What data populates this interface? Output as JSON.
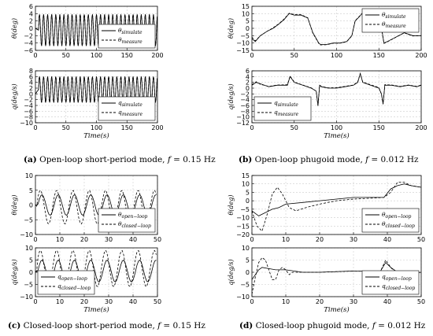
{
  "captions": {
    "a": {
      "tag": "(a)",
      "text": " Open-loop short-period mode, ",
      "f": "f",
      "val": " = 0.15 Hz"
    },
    "b": {
      "tag": "(b)",
      "text": " Open-loop phugoid mode, ",
      "f": "f",
      "val": " = 0.012 Hz"
    },
    "c": {
      "tag": "(c)",
      "text": " Closed-loop short-period mode, ",
      "f": "f",
      "val": " = 0.15 Hz"
    },
    "d": {
      "tag": "(d)",
      "text": " Closed-loop phugoid mode, ",
      "f": "f",
      "val": " = 0.012 Hz"
    }
  },
  "styles": {
    "solid_color": "#000000",
    "dashed_color": "#000000",
    "grid_color": "#cccccc"
  },
  "chart_data": [
    {
      "id": "a_top",
      "type": "line",
      "panel": "a",
      "ylabel": "θ(deg)",
      "xlabel": "",
      "xlim": [
        0,
        200
      ],
      "ylim": [
        -6,
        6
      ],
      "xticks": [
        0,
        50,
        100,
        150,
        200
      ],
      "yticks": [
        -6,
        -4,
        -2,
        0,
        2,
        4,
        6
      ],
      "grid": true,
      "legend": "bottom-right",
      "series": [
        {
          "name": "θsimulate",
          "style": "solid",
          "kind": "sine",
          "period": 6.67,
          "amp": [
            -4.8,
            3.8
          ],
          "start": 5
        },
        {
          "name": "θmeasure",
          "style": "dashed",
          "kind": "sine",
          "period": 6.67,
          "amp": [
            -4.8,
            3.8
          ],
          "start": 5
        }
      ]
    },
    {
      "id": "a_bot",
      "type": "line",
      "panel": "a",
      "ylabel": "q(deg/s)",
      "xlabel": "Time(s)",
      "xlim": [
        0,
        200
      ],
      "ylim": [
        -10,
        8
      ],
      "xticks": [
        0,
        50,
        100,
        150,
        200
      ],
      "yticks": [
        -10,
        -8,
        -6,
        -4,
        -2,
        0,
        2,
        4,
        6,
        8
      ],
      "grid": true,
      "legend": "bottom-right",
      "series": [
        {
          "name": "qsimulate",
          "style": "solid",
          "kind": "sine",
          "period": 6.67,
          "amp": [
            -3,
            6
          ],
          "start": 5
        },
        {
          "name": "qmeasure",
          "style": "dashed",
          "kind": "sine",
          "period": 6.67,
          "amp": [
            -3,
            6
          ],
          "start": 5
        }
      ]
    },
    {
      "id": "b_top",
      "type": "line",
      "panel": "b",
      "ylabel": "θ(deg)",
      "xlabel": "",
      "xlim": [
        0,
        200
      ],
      "ylim": [
        -15,
        15
      ],
      "xticks": [
        0,
        50,
        100,
        150,
        200
      ],
      "yticks": [
        -15,
        -10,
        -5,
        0,
        5,
        10,
        15
      ],
      "grid": true,
      "legend": "top-right",
      "series": [
        {
          "name": "θsimulate",
          "style": "solid",
          "x": [
            0,
            4,
            10,
            18,
            25,
            32,
            38,
            44,
            50,
            58,
            66,
            72,
            77,
            79,
            81,
            88,
            96,
            104,
            112,
            118,
            122,
            127,
            130,
            133,
            141,
            149,
            154,
            156,
            160,
            170,
            180,
            190,
            200
          ],
          "y": [
            -7,
            -9,
            -5,
            -2,
            0,
            3,
            6,
            10,
            9,
            9,
            7,
            -3,
            -8,
            -10,
            -11,
            -11,
            -10,
            -10,
            -9,
            -5,
            5,
            8,
            10,
            11,
            10,
            9,
            -3,
            -10,
            -9,
            -6,
            -3,
            -5,
            -5
          ]
        },
        {
          "name": "θmeasure",
          "style": "dashed",
          "x": [
            0,
            4,
            10,
            18,
            25,
            32,
            38,
            44,
            50,
            58,
            66,
            72,
            77,
            79,
            81,
            88,
            96,
            104,
            112,
            118,
            122,
            127,
            130,
            133,
            141,
            149,
            154,
            156,
            160,
            170,
            180,
            190,
            200
          ],
          "y": [
            -6,
            -8.5,
            -5,
            -2,
            0.3,
            3.2,
            6.3,
            10.3,
            9.4,
            9.3,
            7.2,
            -3.4,
            -8.3,
            -10.3,
            -11.3,
            -11.2,
            -10.2,
            -10.1,
            -9.1,
            -5.2,
            5.2,
            8.2,
            10.2,
            11.3,
            10.2,
            9.2,
            -3.3,
            -10.3,
            -9.2,
            -6.1,
            -3.1,
            -5.2,
            -5.1
          ]
        }
      ]
    },
    {
      "id": "b_bot",
      "type": "line",
      "panel": "b",
      "ylabel": "q(deg/s)",
      "xlabel": "Time(s)",
      "xlim": [
        0,
        200
      ],
      "ylim": [
        -12,
        6
      ],
      "xticks": [
        0,
        50,
        100,
        150,
        200
      ],
      "yticks": [
        -12,
        -10,
        -8,
        -6,
        -4,
        -2,
        0,
        2,
        4,
        6
      ],
      "grid": true,
      "legend": "bottom-left",
      "series": [
        {
          "name": "qsimulate",
          "style": "solid",
          "x": [
            0,
            5,
            10,
            20,
            30,
            42,
            45,
            50,
            60,
            70,
            76,
            78,
            80,
            82,
            90,
            100,
            110,
            120,
            125,
            128,
            131,
            140,
            150,
            153,
            155,
            157,
            165,
            175,
            185,
            195,
            200
          ],
          "y": [
            1,
            2,
            1.5,
            0.5,
            1,
            1,
            4,
            2,
            1,
            0,
            -1,
            -6,
            1,
            0.5,
            0,
            0,
            0.5,
            1,
            2,
            5,
            2,
            1,
            0,
            -2,
            -5.5,
            1,
            1,
            0.5,
            1,
            0.5,
            1
          ]
        },
        {
          "name": "qmeasure",
          "style": "dashed",
          "x": [
            0,
            5,
            10,
            20,
            30,
            42,
            45,
            50,
            60,
            70,
            76,
            78,
            80,
            82,
            90,
            100,
            110,
            120,
            125,
            128,
            131,
            140,
            150,
            153,
            155,
            157,
            165,
            175,
            185,
            195,
            200
          ],
          "y": [
            1.2,
            2.2,
            1.3,
            0.6,
            1.1,
            1.2,
            4.2,
            2.1,
            1.1,
            0.1,
            -1.1,
            -6.2,
            1.1,
            0.6,
            0.1,
            0.2,
            0.6,
            1.1,
            2.2,
            5.1,
            2.1,
            1.2,
            0.2,
            -2.1,
            -5.6,
            1.2,
            1.1,
            0.6,
            1.1,
            0.6,
            1.1
          ]
        }
      ]
    },
    {
      "id": "c_top",
      "type": "line",
      "panel": "c",
      "ylabel": "θ(deg)",
      "xlabel": "",
      "xlim": [
        0,
        50
      ],
      "ylim": [
        -10,
        10
      ],
      "xticks": [
        0,
        10,
        20,
        30,
        40,
        50
      ],
      "yticks": [
        -10,
        -5,
        0,
        5,
        10
      ],
      "grid": true,
      "legend": "bottom-right",
      "series": [
        {
          "name": "θopen−loop",
          "style": "solid",
          "kind": "sine",
          "period": 6.67,
          "amp": [
            -3.5,
            3.5
          ],
          "start": 1
        },
        {
          "name": "θclosed−loop",
          "style": "dashed",
          "kind": "sine",
          "period": 6.67,
          "amp": [
            -6.5,
            5
          ],
          "start": 1,
          "phase": 0.6
        }
      ]
    },
    {
      "id": "c_bot",
      "type": "line",
      "panel": "c",
      "ylabel": "q(deg/s)",
      "xlabel": "Time(s)",
      "xlim": [
        0,
        50
      ],
      "ylim": [
        -10,
        10
      ],
      "xticks": [
        0,
        10,
        20,
        30,
        40,
        50
      ],
      "yticks": [
        -10,
        -5,
        0,
        5,
        10
      ],
      "grid": true,
      "legend": "bottom-left",
      "series": [
        {
          "name": "qopen−loop",
          "style": "solid",
          "kind": "sine",
          "period": 6.67,
          "amp": [
            -4,
            5
          ],
          "start": 1
        },
        {
          "name": "qclosed−loop",
          "style": "dashed",
          "kind": "sine",
          "period": 6.67,
          "amp": [
            -6,
            9
          ],
          "start": 1,
          "phase": 0.6
        }
      ]
    },
    {
      "id": "d_top",
      "type": "line",
      "panel": "d",
      "ylabel": "θ(deg)",
      "xlabel": "",
      "xlim": [
        0,
        50
      ],
      "ylim": [
        -20,
        15
      ],
      "xticks": [
        0,
        10,
        20,
        30,
        40,
        50
      ],
      "yticks": [
        -20,
        -15,
        -10,
        -5,
        0,
        5,
        10,
        15
      ],
      "grid": true,
      "legend": "bottom-right",
      "series": [
        {
          "name": "θopen−loop",
          "style": "solid",
          "x": [
            0,
            2,
            4,
            6,
            8,
            10,
            15,
            20,
            25,
            30,
            35,
            39,
            41,
            43,
            45,
            47,
            50
          ],
          "y": [
            -6,
            -9,
            -7,
            -5,
            -4,
            -2,
            -1,
            0,
            1,
            2,
            2,
            2,
            7,
            9,
            10,
            9,
            8
          ]
        },
        {
          "name": "θclosed−loop",
          "style": "dashed",
          "x": [
            0,
            1.5,
            3,
            4.5,
            6,
            7.5,
            9,
            11,
            13,
            16,
            20,
            25,
            30,
            35,
            39,
            41,
            43,
            45,
            47,
            50
          ],
          "y": [
            -6,
            -15,
            -18,
            -8,
            4,
            8,
            4,
            -4,
            -6,
            -4,
            -2,
            0,
            1,
            1.5,
            2,
            5,
            11,
            11,
            9,
            8
          ]
        }
      ]
    },
    {
      "id": "d_bot",
      "type": "line",
      "panel": "d",
      "ylabel": "q(deg/s)",
      "xlabel": "Time(s)",
      "xlim": [
        0,
        50
      ],
      "ylim": [
        -10,
        10
      ],
      "xticks": [
        0,
        10,
        20,
        30,
        40,
        50
      ],
      "yticks": [
        -10,
        -5,
        0,
        5,
        10
      ],
      "grid": true,
      "legend": "bottom-right",
      "series": [
        {
          "name": "qopen−loop",
          "style": "solid",
          "x": [
            0,
            1,
            2,
            3,
            5,
            7,
            10,
            15,
            20,
            30,
            38,
            39.5,
            41,
            43,
            45,
            47,
            50
          ],
          "y": [
            -3,
            -1,
            1,
            2,
            1.5,
            1,
            1,
            0,
            0,
            0.5,
            0.5,
            4,
            2,
            0,
            -1,
            -0.5,
            0
          ]
        },
        {
          "name": "qclosed−loop",
          "style": "dashed",
          "x": [
            0,
            1,
            2,
            3,
            4,
            5,
            6,
            7,
            8,
            9,
            10,
            11,
            12,
            15,
            20,
            30,
            38,
            39.5,
            41,
            43,
            45,
            47,
            50
          ],
          "y": [
            -9,
            -2,
            4,
            6,
            5,
            1,
            -3,
            -3,
            1,
            2,
            1,
            -1,
            0,
            0,
            0,
            0.5,
            0.5,
            5,
            2,
            -1,
            -2,
            -0.5,
            0
          ]
        }
      ]
    }
  ]
}
